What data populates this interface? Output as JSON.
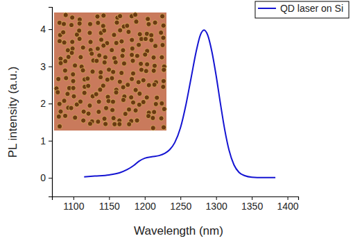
{
  "chart_data": {
    "type": "line",
    "x_label": "Wavelength (nm)",
    "y_label": "PL intensity (a.u.)",
    "x": [
      1115,
      1130,
      1150,
      1165,
      1175,
      1185,
      1192,
      1200,
      1210,
      1220,
      1228,
      1235,
      1242,
      1250,
      1258,
      1265,
      1272,
      1278,
      1283,
      1288,
      1294,
      1300,
      1306,
      1312,
      1318,
      1325,
      1332,
      1340,
      1350,
      1365,
      1383
    ],
    "series": [
      {
        "name": "QD laser on Si",
        "color": "#1414d2",
        "line_style": "solid",
        "values": [
          0.03,
          0.05,
          0.08,
          0.14,
          0.22,
          0.34,
          0.45,
          0.53,
          0.57,
          0.6,
          0.66,
          0.76,
          0.95,
          1.35,
          2.0,
          2.7,
          3.4,
          3.85,
          3.98,
          3.85,
          3.4,
          2.75,
          2.0,
          1.3,
          0.75,
          0.35,
          0.15,
          0.06,
          0.02,
          0.01,
          0.01
        ]
      }
    ],
    "xlim": [
      1070,
      1415
    ],
    "ylim": [
      -0.5,
      4.6
    ],
    "xticks": [
      1100,
      1150,
      1200,
      1250,
      1300,
      1350,
      1400
    ],
    "yticks": [
      0,
      1,
      2,
      3,
      4
    ],
    "legend": "upper right",
    "grid": false
  }
}
